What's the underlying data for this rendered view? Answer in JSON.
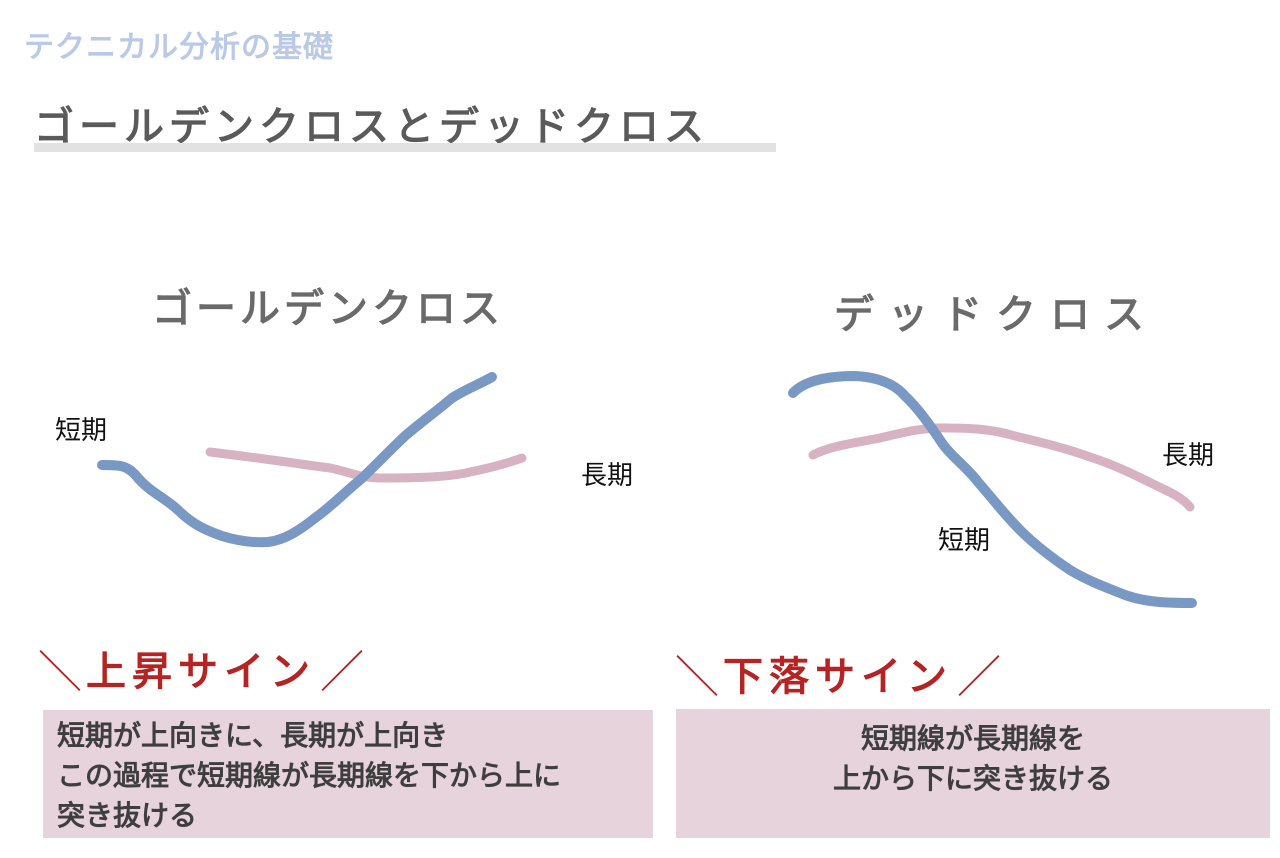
{
  "header": {
    "section_title": "テクニカル分析の基礎",
    "page_title": "ゴールデンクロスとデッドクロス"
  },
  "golden_cross": {
    "heading": "ゴールデンクロス",
    "short_label": "短期",
    "long_label": "長期",
    "signal_slash_left": "＼",
    "signal_text": "上昇サイン",
    "signal_slash_right": "／",
    "description_lines": [
      "短期が上向きに、長期が上向き",
      "この過程で短期線が長期線を下から上に",
      "突き抜ける"
    ]
  },
  "dead_cross": {
    "heading": "デッドクロス",
    "short_label": "短期",
    "long_label": "長期",
    "signal_slash_left": "＼",
    "signal_text": "下落サイン",
    "signal_slash_right": "／",
    "description_lines": [
      "短期線が長期線を",
      "上から下に突き抜ける"
    ]
  },
  "colors": {
    "short_line": "#7a98c4",
    "long_line": "#d7b3c2",
    "signal": "#b62323",
    "box_fill": "#e6d3dc"
  }
}
